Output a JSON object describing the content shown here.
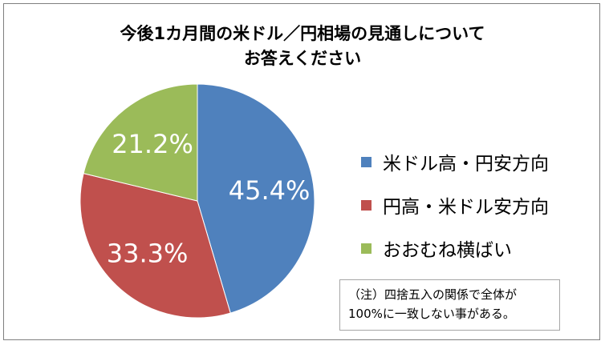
{
  "chart_data": {
    "type": "pie",
    "title": [
      "今後1カ月間の米ドル／円相場の見通しについて",
      "お答えください"
    ],
    "categories": [
      "米ドル高・円安方向",
      "円高・米ドル安方向",
      "おおむね横ばい"
    ],
    "values": [
      45.4,
      33.3,
      21.2
    ],
    "data_labels": [
      "45.4%",
      "33.3%",
      "21.2%"
    ],
    "colors": [
      "#4f81bd",
      "#c0504d",
      "#9bbb59"
    ],
    "start_angle": "12 o'clock",
    "direction": "clockwise",
    "legend_position": "right"
  },
  "note": {
    "line1": "（注）四捨五入の関係で全体が",
    "line2": "100%に一致しない事がある。"
  }
}
